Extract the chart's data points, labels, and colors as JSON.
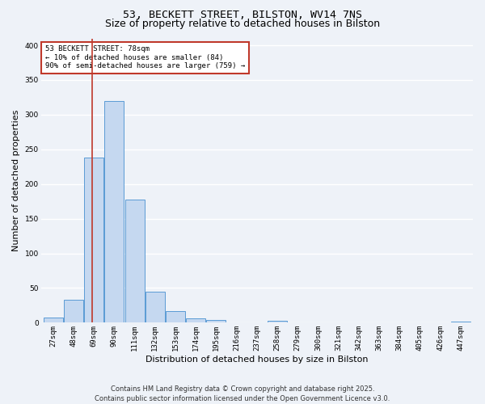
{
  "title1": "53, BECKETT STREET, BILSTON, WV14 7NS",
  "title2": "Size of property relative to detached houses in Bilston",
  "xlabel": "Distribution of detached houses by size in Bilston",
  "ylabel": "Number of detached properties",
  "categories": [
    "27sqm",
    "48sqm",
    "69sqm",
    "90sqm",
    "111sqm",
    "132sqm",
    "153sqm",
    "174sqm",
    "195sqm",
    "216sqm",
    "237sqm",
    "258sqm",
    "279sqm",
    "300sqm",
    "321sqm",
    "342sqm",
    "363sqm",
    "384sqm",
    "405sqm",
    "426sqm",
    "447sqm"
  ],
  "values": [
    8,
    33,
    238,
    320,
    178,
    45,
    17,
    6,
    4,
    0,
    0,
    3,
    0,
    1,
    0,
    0,
    0,
    0,
    0,
    0,
    2
  ],
  "bar_color": "#c5d8f0",
  "bar_edge_color": "#5b9bd5",
  "vline_color": "#c0392b",
  "annotation_line1": "53 BECKETT STREET: 78sqm",
  "annotation_line2": "← 10% of detached houses are smaller (84)",
  "annotation_line3": "90% of semi-detached houses are larger (759) →",
  "annotation_box_color": "#ffffff",
  "annotation_box_edge": "#c0392b",
  "ylim": [
    0,
    410
  ],
  "yticks": [
    0,
    50,
    100,
    150,
    200,
    250,
    300,
    350,
    400
  ],
  "footer": "Contains HM Land Registry data © Crown copyright and database right 2025.\nContains public sector information licensed under the Open Government Licence v3.0.",
  "bg_color": "#eef2f8",
  "grid_color": "#ffffff",
  "title_fontsize": 9.5,
  "subtitle_fontsize": 9,
  "axis_label_fontsize": 8,
  "tick_fontsize": 6.5,
  "annotation_fontsize": 6.5,
  "footer_fontsize": 6
}
